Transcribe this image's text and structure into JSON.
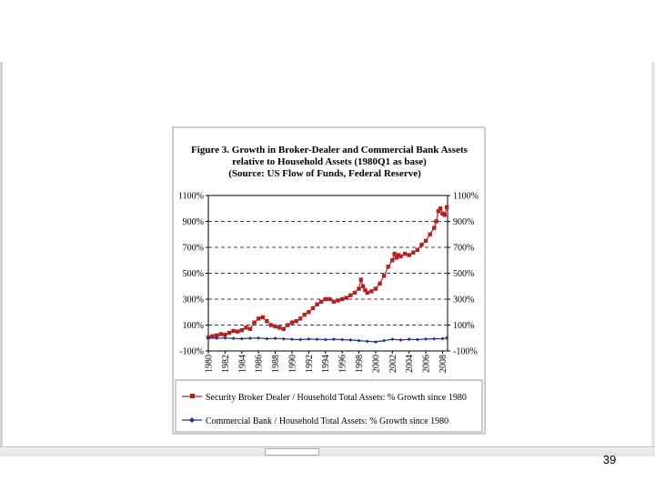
{
  "slide": {
    "number": "39"
  },
  "chart_data": {
    "type": "line",
    "title_lines": [
      "Figure 3. Growth in Broker-Dealer and Commercial Bank Assets",
      "relative to Household Assets (1980Q1 as base)",
      "(Source:  US Flow of Funds, Federal Reserve)"
    ],
    "y_ticks": [
      "-100%",
      "100%",
      "300%",
      "500%",
      "700%",
      "900%",
      "1100%"
    ],
    "y_tick_values": [
      -100,
      100,
      300,
      500,
      700,
      900,
      1100
    ],
    "ylim": [
      -100,
      1100
    ],
    "x_ticks": [
      "1980",
      "1982",
      "1984",
      "1986",
      "1988",
      "1990",
      "1992",
      "1994",
      "1996",
      "1998",
      "2000",
      "2002",
      "2004",
      "2006",
      "2008"
    ],
    "x_tick_values": [
      1980,
      1982,
      1984,
      1986,
      1988,
      1990,
      1992,
      1994,
      1996,
      1998,
      2000,
      2002,
      2004,
      2006,
      2008
    ],
    "xlim": [
      1980,
      2008.6
    ],
    "gridlines": "horizontal dashed",
    "series": [
      {
        "name": "Security Broker Dealer / Household Total Assets: % Growth since 1980",
        "color": "#b22222",
        "marker": "square",
        "x": [
          1980,
          1980.5,
          1981,
          1981.5,
          1982,
          1982.5,
          1983,
          1983.5,
          1984,
          1984.5,
          1985,
          1985.5,
          1986,
          1986.5,
          1987,
          1987.5,
          1988,
          1988.5,
          1989,
          1989.5,
          1990,
          1990.5,
          1991,
          1991.5,
          1992,
          1992.5,
          1993,
          1993.5,
          1994,
          1994.5,
          1995,
          1995.5,
          1996,
          1996.5,
          1997,
          1997.5,
          1998,
          1998.25,
          1998.5,
          1998.75,
          1999,
          1999.5,
          2000,
          2000.5,
          2001,
          2001.5,
          2002,
          2002.25,
          2002.5,
          2002.75,
          2003,
          2003.5,
          2004,
          2004.5,
          2005,
          2005.5,
          2006,
          2006.5,
          2007,
          2007.25,
          2007.5,
          2007.75,
          2008,
          2008.25,
          2008.5
        ],
        "values": [
          5,
          15,
          20,
          30,
          25,
          40,
          55,
          50,
          60,
          80,
          70,
          120,
          150,
          160,
          130,
          100,
          90,
          80,
          70,
          100,
          120,
          130,
          150,
          180,
          200,
          230,
          260,
          280,
          300,
          300,
          280,
          290,
          300,
          310,
          330,
          350,
          380,
          450,
          400,
          370,
          350,
          360,
          380,
          420,
          480,
          550,
          600,
          650,
          620,
          640,
          630,
          650,
          640,
          660,
          680,
          720,
          750,
          800,
          850,
          900,
          980,
          1000,
          960,
          950,
          1010
        ]
      },
      {
        "name": "Commercial Bank / Household Total Assets: % Growth since 1980",
        "color": "#23357a",
        "marker": "diamond",
        "x": [
          1980,
          1981,
          1982,
          1983,
          1984,
          1985,
          1986,
          1987,
          1988,
          1989,
          1990,
          1991,
          1992,
          1993,
          1994,
          1995,
          1996,
          1997,
          1998,
          1999,
          2000,
          2001,
          2002,
          2003,
          2004,
          2005,
          2006,
          2007,
          2008,
          2008.5
        ],
        "values": [
          0,
          -2,
          0,
          -3,
          -5,
          -2,
          0,
          -5,
          -3,
          -6,
          -10,
          -12,
          -8,
          -10,
          -12,
          -10,
          -12,
          -15,
          -20,
          -25,
          -30,
          -20,
          -10,
          -15,
          -10,
          -12,
          -8,
          -6,
          -5,
          0
        ]
      }
    ]
  }
}
